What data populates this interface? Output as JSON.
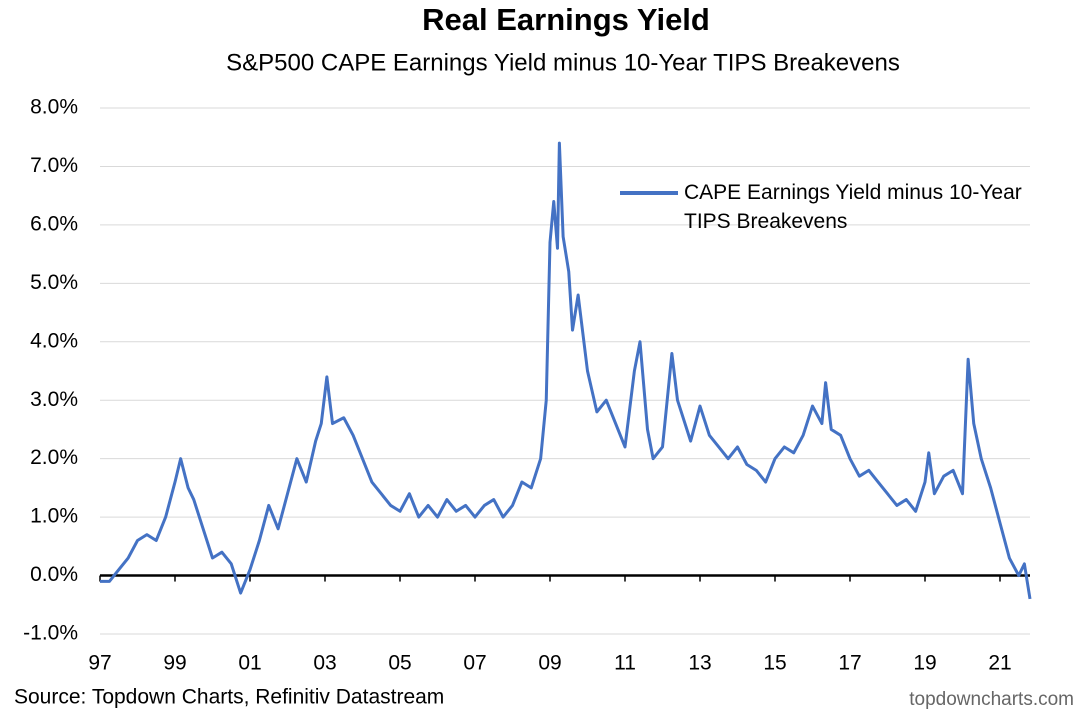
{
  "chart_data": {
    "type": "line",
    "title": "Real Earnings Yield",
    "subtitle": "S&P500 CAPE Earnings Yield minus 10-Year TIPS Breakevens",
    "source": "Source: Topdown Charts, Refinitiv Datastream",
    "watermark": "topdowncharts.com",
    "x": [
      1997.0,
      1997.25,
      1997.5,
      1997.75,
      1998.0,
      1998.25,
      1998.5,
      1998.75,
      1999.0,
      1999.15,
      1999.35,
      1999.5,
      1999.75,
      2000.0,
      2000.25,
      2000.5,
      2000.75,
      2001.0,
      2001.25,
      2001.5,
      2001.75,
      2002.0,
      2002.25,
      2002.5,
      2002.75,
      2002.9,
      2003.05,
      2003.2,
      2003.5,
      2003.75,
      2004.0,
      2004.25,
      2004.5,
      2004.75,
      2005.0,
      2005.25,
      2005.5,
      2005.75,
      2006.0,
      2006.25,
      2006.5,
      2006.75,
      2007.0,
      2007.25,
      2007.5,
      2007.75,
      2008.0,
      2008.25,
      2008.5,
      2008.75,
      2008.9,
      2009.0,
      2009.1,
      2009.2,
      2009.25,
      2009.35,
      2009.5,
      2009.6,
      2009.75,
      2010.0,
      2010.25,
      2010.5,
      2010.75,
      2011.0,
      2011.25,
      2011.4,
      2011.6,
      2011.75,
      2012.0,
      2012.25,
      2012.4,
      2012.6,
      2012.75,
      2013.0,
      2013.25,
      2013.5,
      2013.75,
      2014.0,
      2014.25,
      2014.5,
      2014.75,
      2015.0,
      2015.25,
      2015.5,
      2015.75,
      2016.0,
      2016.25,
      2016.35,
      2016.5,
      2016.75,
      2017.0,
      2017.25,
      2017.5,
      2017.75,
      2018.0,
      2018.25,
      2018.5,
      2018.75,
      2019.0,
      2019.1,
      2019.25,
      2019.5,
      2019.75,
      2020.0,
      2020.15,
      2020.3,
      2020.5,
      2020.75,
      2021.0,
      2021.25,
      2021.5,
      2021.65,
      2021.8
    ],
    "series": [
      {
        "name": "CAPE Earnings Yield minus 10-Year TIPS Breakevens",
        "color": "#4472c4",
        "values": [
          -0.1,
          -0.1,
          0.1,
          0.3,
          0.6,
          0.7,
          0.6,
          1.0,
          1.6,
          2.0,
          1.5,
          1.3,
          0.8,
          0.3,
          0.4,
          0.2,
          -0.3,
          0.1,
          0.6,
          1.2,
          0.8,
          1.4,
          2.0,
          1.6,
          2.3,
          2.6,
          3.4,
          2.6,
          2.7,
          2.4,
          2.0,
          1.6,
          1.4,
          1.2,
          1.1,
          1.4,
          1.0,
          1.2,
          1.0,
          1.3,
          1.1,
          1.2,
          1.0,
          1.2,
          1.3,
          1.0,
          1.2,
          1.6,
          1.5,
          2.0,
          3.0,
          5.7,
          6.4,
          5.6,
          7.4,
          5.8,
          5.2,
          4.2,
          4.8,
          3.5,
          2.8,
          3.0,
          2.6,
          2.2,
          3.5,
          4.0,
          2.5,
          2.0,
          2.2,
          3.8,
          3.0,
          2.6,
          2.3,
          2.9,
          2.4,
          2.2,
          2.0,
          2.2,
          1.9,
          1.8,
          1.6,
          2.0,
          2.2,
          2.1,
          2.4,
          2.9,
          2.6,
          3.3,
          2.5,
          2.4,
          2.0,
          1.7,
          1.8,
          1.6,
          1.4,
          1.2,
          1.3,
          1.1,
          1.6,
          2.1,
          1.4,
          1.7,
          1.8,
          1.4,
          3.7,
          2.6,
          2.0,
          1.5,
          0.9,
          0.3,
          0.0,
          0.2,
          -0.4
        ]
      }
    ],
    "xlim": [
      1997,
      2022
    ],
    "xticks": [
      {
        "value": 1997,
        "label": "97"
      },
      {
        "value": 1999,
        "label": "99"
      },
      {
        "value": 2001,
        "label": "01"
      },
      {
        "value": 2003,
        "label": "03"
      },
      {
        "value": 2005,
        "label": "05"
      },
      {
        "value": 2007,
        "label": "07"
      },
      {
        "value": 2009,
        "label": "09"
      },
      {
        "value": 2011,
        "label": "11"
      },
      {
        "value": 2013,
        "label": "13"
      },
      {
        "value": 2015,
        "label": "15"
      },
      {
        "value": 2017,
        "label": "17"
      },
      {
        "value": 2019,
        "label": "19"
      },
      {
        "value": 2021,
        "label": "21"
      }
    ],
    "ylim": [
      -1,
      8
    ],
    "yticks": [
      {
        "value": -1,
        "label": "-1.0%"
      },
      {
        "value": 0,
        "label": "0.0%"
      },
      {
        "value": 1,
        "label": "1.0%"
      },
      {
        "value": 2,
        "label": "2.0%"
      },
      {
        "value": 3,
        "label": "3.0%"
      },
      {
        "value": 4,
        "label": "4.0%"
      },
      {
        "value": 5,
        "label": "5.0%"
      },
      {
        "value": 6,
        "label": "6.0%"
      },
      {
        "value": 7,
        "label": "7.0%"
      },
      {
        "value": 8,
        "label": "8.0%"
      }
    ],
    "grid": true
  }
}
